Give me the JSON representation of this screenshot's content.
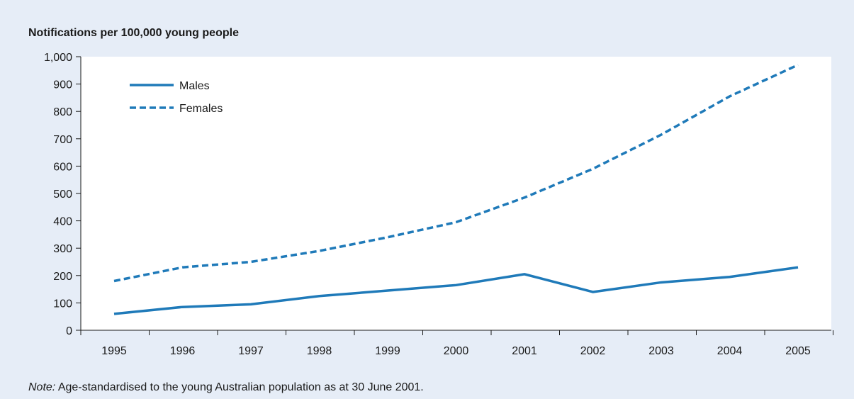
{
  "chart_data": {
    "type": "line",
    "title": "Notifications per 100,000 young people",
    "x": [
      "1995",
      "1996",
      "1997",
      "1998",
      "1999",
      "2000",
      "2001",
      "2002",
      "2003",
      "2004",
      "2005"
    ],
    "ylim": [
      0,
      1000
    ],
    "yticks": [
      0,
      100,
      200,
      300,
      400,
      500,
      600,
      700,
      800,
      900,
      1000
    ],
    "ytick_labels": [
      "0",
      "100",
      "200",
      "300",
      "400",
      "500",
      "600",
      "700",
      "800",
      "900",
      "1,000"
    ],
    "series": [
      {
        "name": "Males",
        "style": "solid",
        "values": [
          60,
          85,
          95,
          125,
          145,
          165,
          205,
          140,
          175,
          195,
          230
        ]
      },
      {
        "name": "Females",
        "style": "dashed",
        "values": [
          180,
          230,
          250,
          290,
          340,
          395,
          485,
          590,
          715,
          855,
          970
        ]
      }
    ],
    "legend_position": "top-left",
    "grid": false,
    "colors": {
      "line": "#1f7ab9",
      "background": "#e6edf7",
      "plot": "#ffffff"
    }
  },
  "note": {
    "label": "Note:",
    "text": "Age-standardised to the young Australian population as at 30 June 2001."
  }
}
